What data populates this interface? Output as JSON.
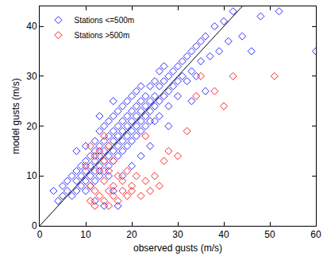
{
  "chart_data": {
    "type": "scatter",
    "xlabel": "observed gusts (m/s)",
    "ylabel": "model gusts (m/s)",
    "xlim": [
      0,
      60
    ],
    "xticks": [
      0,
      10,
      20,
      30,
      40,
      50,
      60
    ],
    "ylim": [
      0,
      44
    ],
    "yticks": [
      0,
      10,
      20,
      30,
      40
    ],
    "grid": false,
    "legend": "top left",
    "series": [
      {
        "name": "Stations <=500m",
        "color": "#2b2bff",
        "marker": "diamond-open",
        "x": [
          3,
          4,
          5,
          5,
          6,
          6,
          7,
          7,
          8,
          8,
          8,
          9,
          9,
          9,
          10,
          10,
          10,
          10,
          11,
          11,
          11,
          11,
          12,
          12,
          12,
          12,
          12,
          13,
          13,
          13,
          13,
          13,
          14,
          14,
          14,
          14,
          14,
          15,
          15,
          15,
          15,
          15,
          15,
          16,
          16,
          16,
          16,
          16,
          17,
          17,
          17,
          17,
          17,
          18,
          18,
          18,
          18,
          18,
          19,
          19,
          19,
          19,
          19,
          20,
          20,
          20,
          20,
          20,
          21,
          21,
          21,
          21,
          21,
          22,
          22,
          22,
          22,
          22,
          23,
          23,
          23,
          23,
          24,
          24,
          24,
          24,
          25,
          25,
          25,
          25,
          26,
          26,
          26,
          26,
          27,
          27,
          27,
          28,
          28,
          28,
          29,
          29,
          30,
          30,
          30,
          31,
          31,
          32,
          32,
          33,
          33,
          34,
          34,
          35,
          35,
          36,
          37,
          38,
          39,
          40,
          41,
          42,
          44,
          46,
          48,
          52,
          8,
          10,
          13,
          16,
          14,
          12,
          16,
          18,
          20,
          24,
          28,
          33,
          36,
          22,
          17,
          60
        ],
        "values": [
          7,
          5,
          8,
          6,
          9,
          7,
          10,
          6,
          9,
          7,
          11,
          10,
          8,
          12,
          11,
          9,
          13,
          7,
          12,
          10,
          14,
          8,
          13,
          11,
          15,
          9,
          17,
          14,
          12,
          16,
          10,
          19,
          15,
          13,
          17,
          11,
          20,
          16,
          14,
          18,
          12,
          21,
          10,
          17,
          15,
          19,
          13,
          22,
          18,
          16,
          20,
          14,
          23,
          19,
          17,
          21,
          15,
          24,
          20,
          18,
          22,
          16,
          25,
          21,
          19,
          23,
          17,
          26,
          22,
          20,
          24,
          18,
          27,
          23,
          21,
          25,
          19,
          28,
          24,
          22,
          26,
          20,
          25,
          23,
          28,
          21,
          26,
          24,
          29,
          21,
          28,
          25,
          31,
          22,
          29,
          26,
          32,
          30,
          27,
          24,
          31,
          28,
          32,
          29,
          26,
          33,
          30,
          34,
          29,
          35,
          31,
          36,
          30,
          37,
          33,
          38,
          34,
          40,
          35,
          41,
          37,
          43,
          38,
          35,
          42,
          43,
          15,
          16,
          22,
          25,
          4,
          5,
          7,
          10,
          12,
          16,
          20,
          25,
          27,
          14,
          4,
          35
        ]
      },
      {
        "name": "Stations >500m",
        "color": "#ff2020",
        "marker": "diamond-open",
        "x": [
          10,
          11,
          11,
          12,
          12,
          12,
          13,
          13,
          13,
          14,
          14,
          14,
          15,
          15,
          15,
          15,
          16,
          16,
          16,
          17,
          17,
          18,
          18,
          19,
          19,
          20,
          20,
          21,
          22,
          23,
          24,
          25,
          26,
          27,
          28,
          30,
          32,
          34,
          35,
          38,
          40,
          42,
          51,
          23,
          11,
          14
        ],
        "values": [
          12,
          8,
          5,
          14,
          7,
          4,
          11,
          6,
          15,
          9,
          5,
          13,
          7,
          11,
          16,
          4,
          8,
          6,
          13,
          5,
          10,
          7,
          9,
          6,
          11,
          8,
          7,
          10,
          6,
          9,
          7,
          10,
          8,
          13,
          15,
          14,
          19,
          26,
          30,
          27,
          24,
          30,
          30,
          18,
          16,
          18
        ]
      },
      {
        "type": "line",
        "color": "#000000",
        "line_style": "solid",
        "x": [
          0,
          44
        ],
        "values": [
          0,
          44
        ]
      }
    ]
  }
}
